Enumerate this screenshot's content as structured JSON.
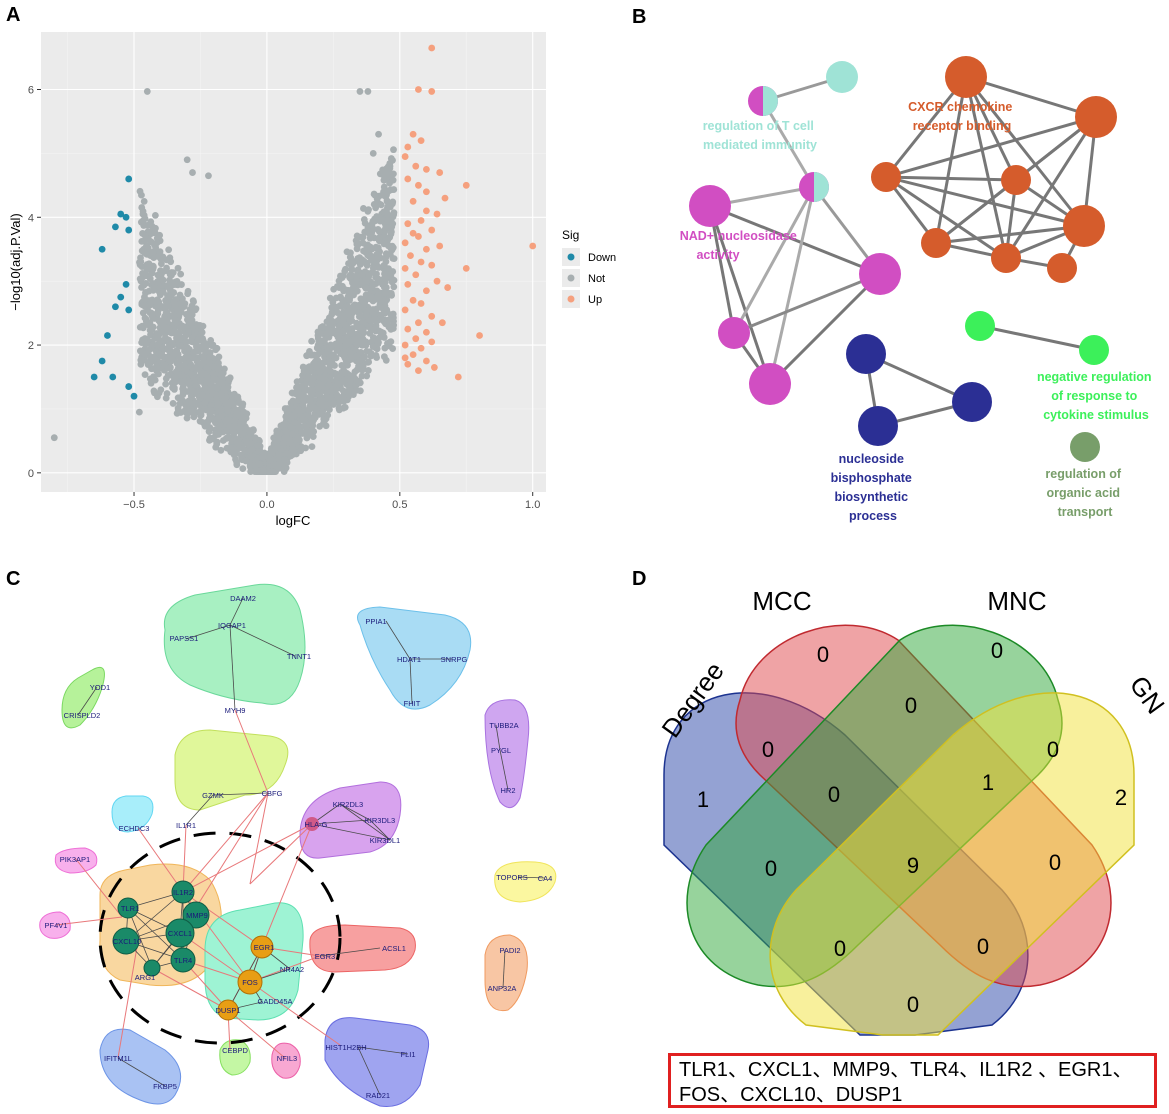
{
  "panels": {
    "a": "A",
    "b": "B",
    "c": "C",
    "d": "D"
  },
  "volcano": {
    "type": "scatter",
    "xlabel": "logFC",
    "ylabel": "−log10(adj.P.Val)",
    "xlim": [
      -0.85,
      1.05
    ],
    "ylim": [
      -0.3,
      6.9
    ],
    "xticks": [
      {
        "v": -0.5,
        "label": "−0.5"
      },
      {
        "v": 0,
        "label": "0.0"
      },
      {
        "v": 0.5,
        "label": "0.5"
      },
      {
        "v": 1.0,
        "label": "1.0"
      }
    ],
    "yticks": [
      {
        "v": 0,
        "label": "0"
      },
      {
        "v": 2,
        "label": "2"
      },
      {
        "v": 4,
        "label": "4"
      },
      {
        "v": 6,
        "label": "6"
      }
    ],
    "legend": {
      "title": "Sig",
      "items": [
        {
          "name": "Down",
          "color": "#1f8aa8"
        },
        {
          "name": "Not",
          "color": "#a7aeb0"
        },
        {
          "name": "Up",
          "color": "#f5a07e"
        }
      ]
    },
    "down_points": [
      [
        -0.52,
        4.6
      ],
      [
        -0.55,
        4.05
      ],
      [
        -0.53,
        4.0
      ],
      [
        -0.57,
        3.85
      ],
      [
        -0.52,
        3.8
      ],
      [
        -0.62,
        3.5
      ],
      [
        -0.53,
        2.95
      ],
      [
        -0.55,
        2.75
      ],
      [
        -0.57,
        2.6
      ],
      [
        -0.52,
        2.55
      ],
      [
        -0.6,
        2.15
      ],
      [
        -0.62,
        1.75
      ],
      [
        -0.58,
        1.5
      ],
      [
        -0.65,
        1.5
      ],
      [
        -0.52,
        1.35
      ],
      [
        -0.5,
        1.2
      ]
    ],
    "up_points": [
      [
        0.62,
        6.65
      ],
      [
        0.57,
        6.0
      ],
      [
        0.62,
        5.97
      ],
      [
        0.55,
        5.3
      ],
      [
        0.58,
        5.2
      ],
      [
        0.53,
        5.1
      ],
      [
        0.52,
        4.95
      ],
      [
        0.6,
        4.75
      ],
      [
        0.56,
        4.8
      ],
      [
        0.65,
        4.7
      ],
      [
        0.53,
        4.6
      ],
      [
        0.57,
        4.5
      ],
      [
        0.6,
        4.4
      ],
      [
        0.75,
        4.5
      ],
      [
        0.67,
        4.3
      ],
      [
        0.55,
        4.25
      ],
      [
        0.6,
        4.1
      ],
      [
        0.64,
        4.05
      ],
      [
        0.58,
        3.95
      ],
      [
        0.53,
        3.9
      ],
      [
        0.62,
        3.8
      ],
      [
        0.55,
        3.75
      ],
      [
        0.57,
        3.7
      ],
      [
        0.52,
        3.6
      ],
      [
        0.65,
        3.55
      ],
      [
        0.6,
        3.5
      ],
      [
        1.0,
        3.55
      ],
      [
        0.54,
        3.4
      ],
      [
        0.58,
        3.3
      ],
      [
        0.62,
        3.25
      ],
      [
        0.75,
        3.2
      ],
      [
        0.52,
        3.2
      ],
      [
        0.56,
        3.1
      ],
      [
        0.64,
        3.0
      ],
      [
        0.53,
        2.95
      ],
      [
        0.68,
        2.9
      ],
      [
        0.6,
        2.85
      ],
      [
        0.55,
        2.7
      ],
      [
        0.58,
        2.65
      ],
      [
        0.52,
        2.55
      ],
      [
        0.62,
        2.45
      ],
      [
        0.57,
        2.35
      ],
      [
        0.66,
        2.35
      ],
      [
        0.53,
        2.25
      ],
      [
        0.6,
        2.2
      ],
      [
        0.8,
        2.15
      ],
      [
        0.56,
        2.1
      ],
      [
        0.62,
        2.05
      ],
      [
        0.52,
        2.0
      ],
      [
        0.58,
        1.95
      ],
      [
        0.55,
        1.85
      ],
      [
        0.6,
        1.75
      ],
      [
        0.53,
        1.7
      ],
      [
        0.57,
        1.6
      ],
      [
        0.72,
        1.5
      ],
      [
        0.52,
        1.8
      ],
      [
        0.63,
        1.65
      ]
    ],
    "not_extra": [
      [
        -0.45,
        5.97
      ],
      [
        0.35,
        5.97
      ],
      [
        0.38,
        5.97
      ],
      [
        -0.8,
        0.55
      ],
      [
        -0.48,
        0.95
      ],
      [
        0.42,
        5.3
      ],
      [
        0.4,
        5.0
      ],
      [
        -0.3,
        4.9
      ],
      [
        -0.28,
        4.7
      ],
      [
        -0.22,
        4.65
      ]
    ]
  },
  "enrichment": {
    "groups": [
      {
        "label": "regulation of T cell mediated immunity",
        "lines": [
          "regulation of T cell",
          "mediated immunity"
        ],
        "color": "#9fe3d6"
      },
      {
        "label": "CXCR chemokine receptor binding",
        "lines": [
          "CXCR chemokine",
          "receptor binding"
        ],
        "color": "#d55c2c"
      },
      {
        "label": "NAD+ nucleosidase activity",
        "lines": [
          "NAD+ nucleosidase",
          "activity"
        ],
        "color": "#d14ec2"
      },
      {
        "label": "nucleoside bisphosphate biosynthetic process",
        "lines": [
          "nucleoside",
          "bisphosphate",
          "biosynthetic",
          "process"
        ],
        "color": "#2b2f94"
      },
      {
        "label": "negative regulation of response to cytokine stimulus",
        "lines": [
          "negative regulation",
          "of response to",
          "cytokine stimulus"
        ],
        "color": "#3cf05a"
      },
      {
        "label": "regulation of organic acid transport",
        "lines": [
          "regulation of",
          "organic acid",
          "transport"
        ],
        "color": "#789e6a"
      }
    ]
  },
  "network": {
    "genes": {
      "darm2": "DAAM2",
      "papss1": "PAPSS1",
      "iqgap1": "IQGAP1",
      "tnni1": "TNNT1",
      "myh9": "MYH9",
      "pppa1": "PPIA1",
      "hdt1": "HDAT1",
      "snrpg": "SNRPG",
      "fhit": "FHIT",
      "yod1": "YOD1",
      "crispld2": "CRISPLD2",
      "tubb2a": "TUBB2A",
      "pygl": "PYGL",
      "hr2": "HR2",
      "gzmk": "GZMK",
      "cbfg": "CBFG",
      "il1r1": "IL1R1",
      "kir2dl3a": "KIR2DL3",
      "kir3dl3": "KIR3DL3",
      "kir3dl1": "KIR3DL1",
      "hlag": "HLA-G",
      "echdc3": "ECHDC3",
      "pik3ap1": "PIK3AP1",
      "pf4v1": "PF4V1",
      "tlr1": "TLR1",
      "il1r2": "IL1R2",
      "mmp9": "MMP9",
      "cxcl10": "CXCL10",
      "cxcl1": "CXCL1",
      "tlr4": "TLR4",
      "arg1": "ARG1",
      "egr1": "EGR1",
      "fos": "FOS",
      "dusp1": "DUSP1",
      "nr4a2": "NR4A2",
      "gadd45a": "GADD45A",
      "egr3": "EGR3",
      "acsl1": "ACSL1",
      "topors": "TOPORS",
      "ca4": "CA4",
      "padi2": "PADI2",
      "anp32a": "ANP32A",
      "ifitm": "IFITM1L",
      "fkbp5": "FKBP5",
      "cebpd": "CEBPD",
      "nfil3": "NFIL3",
      "hist": "HIST1H2BH",
      "fli1": "FLI1",
      "rad21": "RAD21"
    }
  },
  "venn": {
    "sets": [
      {
        "name": "Degree",
        "color": "#2a46a8"
      },
      {
        "name": "MCC",
        "color": "#e0474c"
      },
      {
        "name": "MNC",
        "color": "#2fa83a"
      },
      {
        "name": "GN",
        "color": "#f2e23a"
      }
    ],
    "counts": {
      "mcc_only": "0",
      "mnc_only": "0",
      "degree_only": "1",
      "gn_only": "2",
      "degree_mcc": "0",
      "mcc_mnc": "0",
      "mnc_gn": "0",
      "degree_mcc_mnc": "0",
      "mcc_mnc_gn": "1",
      "degree_mnc": "0",
      "all": "9",
      "mcc_gn": "0",
      "degree_mnc_gn": "0",
      "degree_mcc_gn": "0",
      "degree_gn": "0"
    },
    "genes_line1": "TLR1、CXCL1、MMP9、TLR4、IL1R2 、EGR1、",
    "genes_line2": "FOS、CXCL10、DUSP1"
  }
}
